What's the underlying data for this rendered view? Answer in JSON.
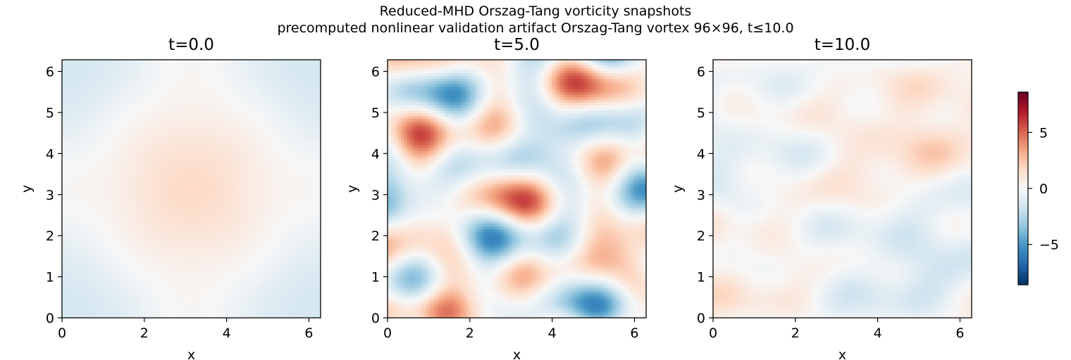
{
  "figure": {
    "suptitle_line1": "Reduced-MHD Orszag-Tang vorticity snapshots",
    "suptitle_line2": "precomputed nonlinear validation artifact Orszag-Tang vortex 96×96, t≤10.0"
  },
  "chart_data": [
    {
      "type": "heatmap",
      "title": "t=0.0",
      "xlabel": "x",
      "ylabel": "y",
      "xlim": [
        0,
        6.2832
      ],
      "ylim": [
        0,
        6.2832
      ],
      "xticks": [
        "0",
        "2",
        "4",
        "6"
      ],
      "yticks": [
        "0",
        "1",
        "2",
        "3",
        "4",
        "5",
        "6"
      ],
      "grid": "96×96",
      "colormap": "RdBu_r",
      "value_range": [
        -1.6,
        1.6
      ]
    },
    {
      "type": "heatmap",
      "title": "t=5.0",
      "xlabel": "x",
      "ylabel": "y",
      "xlim": [
        0,
        6.2832
      ],
      "ylim": [
        0,
        6.2832
      ],
      "xticks": [
        "0",
        "2",
        "4",
        "6"
      ],
      "yticks": [
        "0",
        "1",
        "2",
        "3",
        "4",
        "5",
        "6"
      ],
      "grid": "96×96",
      "colormap": "RdBu_r",
      "value_range": [
        -5,
        4.5
      ]
    },
    {
      "type": "heatmap",
      "title": "t=10.0",
      "xlabel": "x",
      "ylabel": "y",
      "xlim": [
        0,
        6.2832
      ],
      "ylim": [
        0,
        6.2832
      ],
      "xticks": [
        "0",
        "2",
        "4",
        "6"
      ],
      "yticks": [
        "0",
        "1",
        "2",
        "3",
        "4",
        "5",
        "6"
      ],
      "grid": "96×96",
      "colormap": "RdBu_r",
      "value_range": [
        -1.5,
        2.5
      ]
    }
  ],
  "colorbar": {
    "vmin": -8.6,
    "vmax": 8.6,
    "ticks": [
      {
        "value": 5,
        "label": "5"
      },
      {
        "value": 0,
        "label": "0"
      },
      {
        "value": -5,
        "label": "−5"
      }
    ],
    "colors": [
      "#053061",
      "#2166ac",
      "#4393c3",
      "#92c5de",
      "#d1e5f0",
      "#f7f7f7",
      "#fddbc7",
      "#f4a582",
      "#d6604d",
      "#b2182b",
      "#67001f"
    ]
  }
}
